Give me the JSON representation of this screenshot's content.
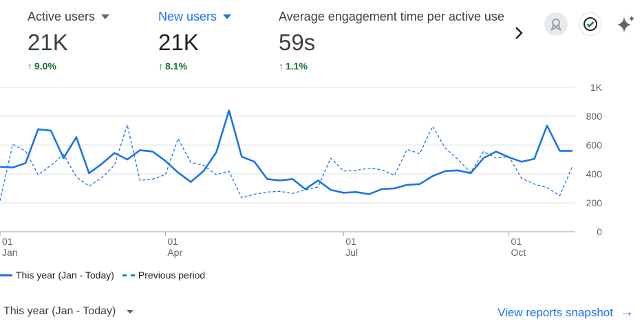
{
  "metrics": [
    {
      "label": "Active users",
      "value": "21K",
      "delta": "9.0%"
    },
    {
      "label": "New users",
      "value": "21K",
      "delta": "8.1%"
    },
    {
      "label": "Average engagement time per active user",
      "value": "59s",
      "delta": "1.1%"
    }
  ],
  "icons": {
    "next": "chevron-right-icon",
    "award": "award-icon",
    "check": "check-circle-icon",
    "sparkle": "sparkle-icon"
  },
  "chart_data": {
    "type": "line",
    "ylim": [
      0,
      1000
    ],
    "yticks": [
      "0",
      "200",
      "400",
      "600",
      "800",
      "1K"
    ],
    "xticks": [
      {
        "day": "01",
        "month": "Jan",
        "index": 0
      },
      {
        "day": "01",
        "month": "Apr",
        "index": 13
      },
      {
        "day": "01",
        "month": "Jul",
        "index": 27
      },
      {
        "day": "01",
        "month": "Oct",
        "index": 40
      }
    ],
    "series": [
      {
        "name": "This year (Jan - Today)",
        "style": "solid",
        "color": "#1a73e8",
        "values": [
          450,
          445,
          475,
          710,
          700,
          510,
          655,
          405,
          470,
          545,
          500,
          565,
          555,
          490,
          410,
          345,
          420,
          550,
          840,
          520,
          485,
          365,
          355,
          365,
          295,
          355,
          290,
          270,
          275,
          260,
          295,
          300,
          325,
          330,
          385,
          420,
          425,
          405,
          510,
          555,
          515,
          485,
          505,
          735,
          560,
          560
        ]
      },
      {
        "name": "Previous period",
        "style": "dashed",
        "color": "#1a73e8",
        "values": [
          215,
          605,
          560,
          395,
          460,
          535,
          380,
          315,
          375,
          460,
          740,
          355,
          365,
          395,
          645,
          480,
          460,
          395,
          420,
          235,
          260,
          275,
          280,
          265,
          290,
          310,
          510,
          420,
          425,
          440,
          430,
          390,
          570,
          540,
          730,
          580,
          500,
          410,
          555,
          510,
          520,
          370,
          330,
          305,
          250,
          455
        ]
      }
    ]
  },
  "legend": {
    "this_year": "This year (Jan - Today)",
    "previous": "Previous period"
  },
  "footer": {
    "date_range": "This year (Jan - Today)",
    "view_reports": "View reports snapshot"
  }
}
